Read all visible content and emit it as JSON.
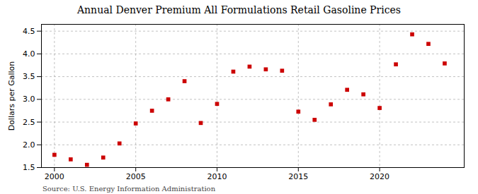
{
  "chart_data": {
    "type": "scatter",
    "title": "Annual Denver Premium All Formulations Retail Gasoline Prices",
    "ylabel": "Dollars per Gallon",
    "annotations": [
      "Source: U.S. Energy Information Administration"
    ],
    "x": [
      2000,
      2001,
      2002,
      2003,
      2004,
      2005,
      2006,
      2007,
      2008,
      2009,
      2010,
      2011,
      2012,
      2013,
      2014,
      2015,
      2016,
      2017,
      2018,
      2019,
      2020,
      2021,
      2022,
      2023,
      2024
    ],
    "values": [
      1.78,
      1.68,
      1.56,
      1.72,
      2.03,
      2.47,
      2.75,
      3.0,
      3.4,
      2.48,
      2.9,
      3.61,
      3.72,
      3.66,
      3.63,
      2.73,
      2.55,
      2.89,
      3.21,
      3.11,
      2.81,
      3.77,
      4.43,
      4.22,
      3.79
    ],
    "color": "#cc0000",
    "marker": "square",
    "xlim": [
      1999.2,
      2025.2
    ],
    "ylim": [
      1.5,
      4.65
    ],
    "xticks": [
      2000,
      2005,
      2010,
      2015,
      2020
    ],
    "yticks": [
      1.5,
      {
        "value": 2.0,
        "label": "2.0"
      },
      2.5,
      {
        "value": 3.0,
        "label": "3.0"
      },
      3.5,
      {
        "value": 4.0,
        "label": "4.0"
      },
      4.5
    ],
    "grid": true
  }
}
